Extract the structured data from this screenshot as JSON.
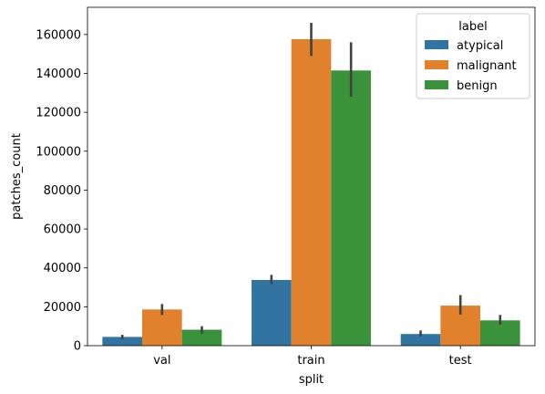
{
  "chart_data": {
    "type": "bar",
    "xlabel": "split",
    "ylabel": "patches_count",
    "categories": [
      "val",
      "train",
      "test"
    ],
    "ylim": [
      0,
      174000
    ],
    "yticks": [
      0,
      20000,
      40000,
      60000,
      80000,
      100000,
      120000,
      140000,
      160000
    ],
    "legend": {
      "title": "label",
      "placement": "top-right"
    },
    "series": [
      {
        "name": "atypical",
        "color": "#3274a1",
        "values": [
          4500,
          33800,
          6000
        ],
        "error_low": [
          3300,
          31600,
          4800
        ],
        "error_high": [
          5600,
          36400,
          7800
        ]
      },
      {
        "name": "malignant",
        "color": "#e1812c",
        "values": [
          18600,
          157600,
          20600
        ],
        "error_low": [
          15800,
          149000,
          16000
        ],
        "error_high": [
          21400,
          166000,
          26000
        ]
      },
      {
        "name": "benign",
        "color": "#3a923a",
        "values": [
          8200,
          141500,
          13000
        ],
        "error_low": [
          6200,
          128000,
          10800
        ],
        "error_high": [
          10000,
          156000,
          15800
        ]
      }
    ],
    "error_color": "#424242"
  }
}
